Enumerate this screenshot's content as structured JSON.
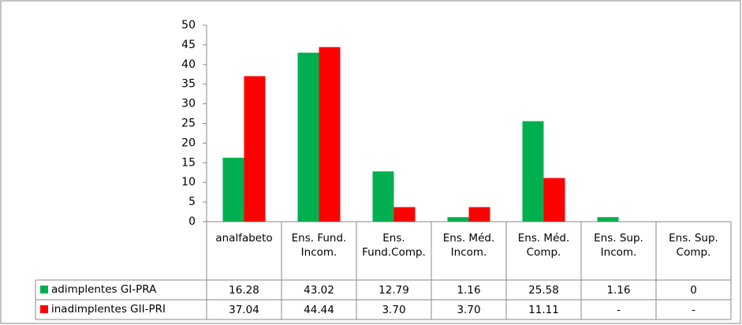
{
  "chart_data": {
    "type": "bar",
    "categories": [
      "analfabeto",
      "Ens. Fund. Incom.",
      "Ens. Fund.Comp.",
      "Ens. Méd. Incom.",
      "Ens. Méd. Comp.",
      "Ens. Sup. Incom.",
      "Ens. Sup. Comp."
    ],
    "series": [
      {
        "name": "adimplentes GI-PRA",
        "color": "#00b050",
        "values": [
          16.28,
          43.02,
          12.79,
          1.16,
          25.58,
          1.16,
          0
        ],
        "value_labels": [
          "16.28",
          "43.02",
          "12.79",
          "1.16",
          "25.58",
          "1.16",
          "0"
        ]
      },
      {
        "name": "inadimplentes GII-PRI",
        "color": "#ff0000",
        "values": [
          37.04,
          44.44,
          3.7,
          3.7,
          11.11,
          null,
          null
        ],
        "value_labels": [
          "37.04",
          "44.44",
          "3.70",
          "3.70",
          "11.11",
          "-",
          "-"
        ]
      }
    ],
    "ylim": [
      0,
      50
    ],
    "yticks": [
      0,
      5,
      10,
      15,
      20,
      25,
      30,
      35,
      40,
      45,
      50
    ],
    "grid": false,
    "data_table": true
  }
}
